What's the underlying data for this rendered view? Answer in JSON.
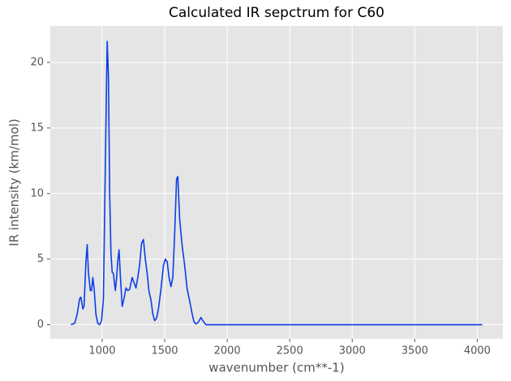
{
  "chart_data": {
    "type": "line",
    "title": "Calculated IR sepctrum for C60",
    "x_label": "wavenumber (cm**-1)",
    "y_label": "IR intensity (km/mol)",
    "x": [
      750,
      780,
      800,
      820,
      830,
      845,
      855,
      870,
      880,
      890,
      905,
      915,
      925,
      935,
      950,
      965,
      980,
      995,
      1010,
      1025,
      1040,
      1050,
      1060,
      1070,
      1080,
      1090,
      1105,
      1115,
      1125,
      1135,
      1145,
      1160,
      1175,
      1190,
      1205,
      1220,
      1240,
      1255,
      1270,
      1285,
      1300,
      1315,
      1330,
      1345,
      1360,
      1375,
      1390,
      1405,
      1420,
      1435,
      1450,
      1470,
      1490,
      1505,
      1520,
      1535,
      1550,
      1565,
      1580,
      1595,
      1605,
      1620,
      1640,
      1660,
      1680,
      1700,
      1720,
      1735,
      1750,
      1770,
      1790,
      1805,
      1830,
      2000,
      4040
    ],
    "values": [
      0,
      0.1,
      0.8,
      2.0,
      2.1,
      1.2,
      1.4,
      4.8,
      6.1,
      4.0,
      2.6,
      2.6,
      3.6,
      2.8,
      0.8,
      0.1,
      0,
      0.3,
      2,
      12,
      21.6,
      19,
      10,
      5.5,
      4,
      3.9,
      2.6,
      3.5,
      4.9,
      5.7,
      3.8,
      1.4,
      2.0,
      2.8,
      2.6,
      2.7,
      3.6,
      3.2,
      2.8,
      3.6,
      4.6,
      6.2,
      6.5,
      5.0,
      3.9,
      2.5,
      1.9,
      0.8,
      0.3,
      0.5,
      1.2,
      2.7,
      4.5,
      5.0,
      4.8,
      3.6,
      2.9,
      3.6,
      7,
      11.1,
      11.3,
      8,
      6.0,
      4.5,
      2.7,
      1.8,
      0.8,
      0.2,
      0.05,
      0.2,
      0.55,
      0.3,
      0,
      0,
      0
    ],
    "color": "#0b3ee6",
    "xlim": [
      585,
      4205
    ],
    "ylim": [
      -1.08,
      22.78
    ],
    "xticks": [
      1000,
      1500,
      2000,
      2500,
      3000,
      3500,
      4000
    ],
    "yticks": [
      0,
      5,
      10,
      15,
      20
    ],
    "grid": true
  }
}
